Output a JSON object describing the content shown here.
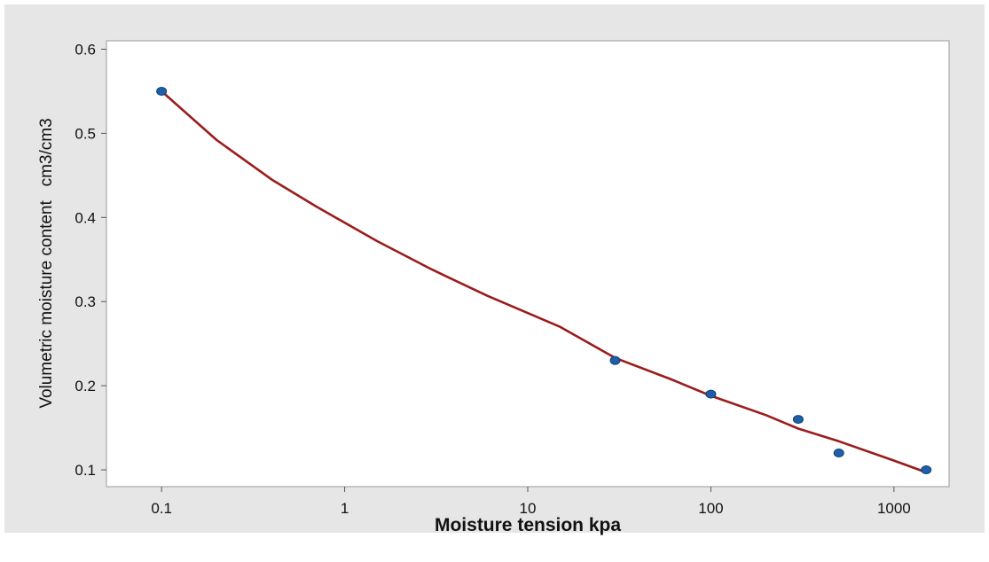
{
  "chart_data": {
    "type": "scatter",
    "title": "",
    "xlabel": "Moisture tension kpa",
    "ylabel": "Volumetric moisture content   cm3/cm3",
    "x_scale": "log",
    "xlim": [
      0.05,
      2000
    ],
    "ylim": [
      0.08,
      0.61
    ],
    "x_ticks": [
      0.1,
      1,
      10,
      100,
      1000
    ],
    "x_tick_labels": [
      "0.1",
      "1",
      "10",
      "100",
      "1000"
    ],
    "y_ticks": [
      0.1,
      0.2,
      0.3,
      0.4,
      0.5,
      0.6
    ],
    "y_tick_labels": [
      "0.1",
      "0.2",
      "0.3",
      "0.4",
      "0.5",
      "0.6"
    ],
    "grid": false,
    "series": [
      {
        "kind": "points",
        "color": "#1f5fa8",
        "x": [
          0.1,
          30,
          100,
          300,
          500,
          1500
        ],
        "y": [
          0.55,
          0.23,
          0.19,
          0.16,
          0.12,
          0.1
        ]
      },
      {
        "kind": "fitted-line",
        "color": "#9b1c1c",
        "x": [
          0.1,
          0.2,
          0.4,
          0.7,
          1.5,
          3,
          6,
          15,
          30,
          60,
          100,
          200,
          300,
          500,
          1000,
          1500
        ],
        "y": [
          0.55,
          0.492,
          0.445,
          0.413,
          0.372,
          0.338,
          0.307,
          0.27,
          0.233,
          0.208,
          0.188,
          0.165,
          0.149,
          0.134,
          0.111,
          0.097
        ]
      }
    ]
  }
}
